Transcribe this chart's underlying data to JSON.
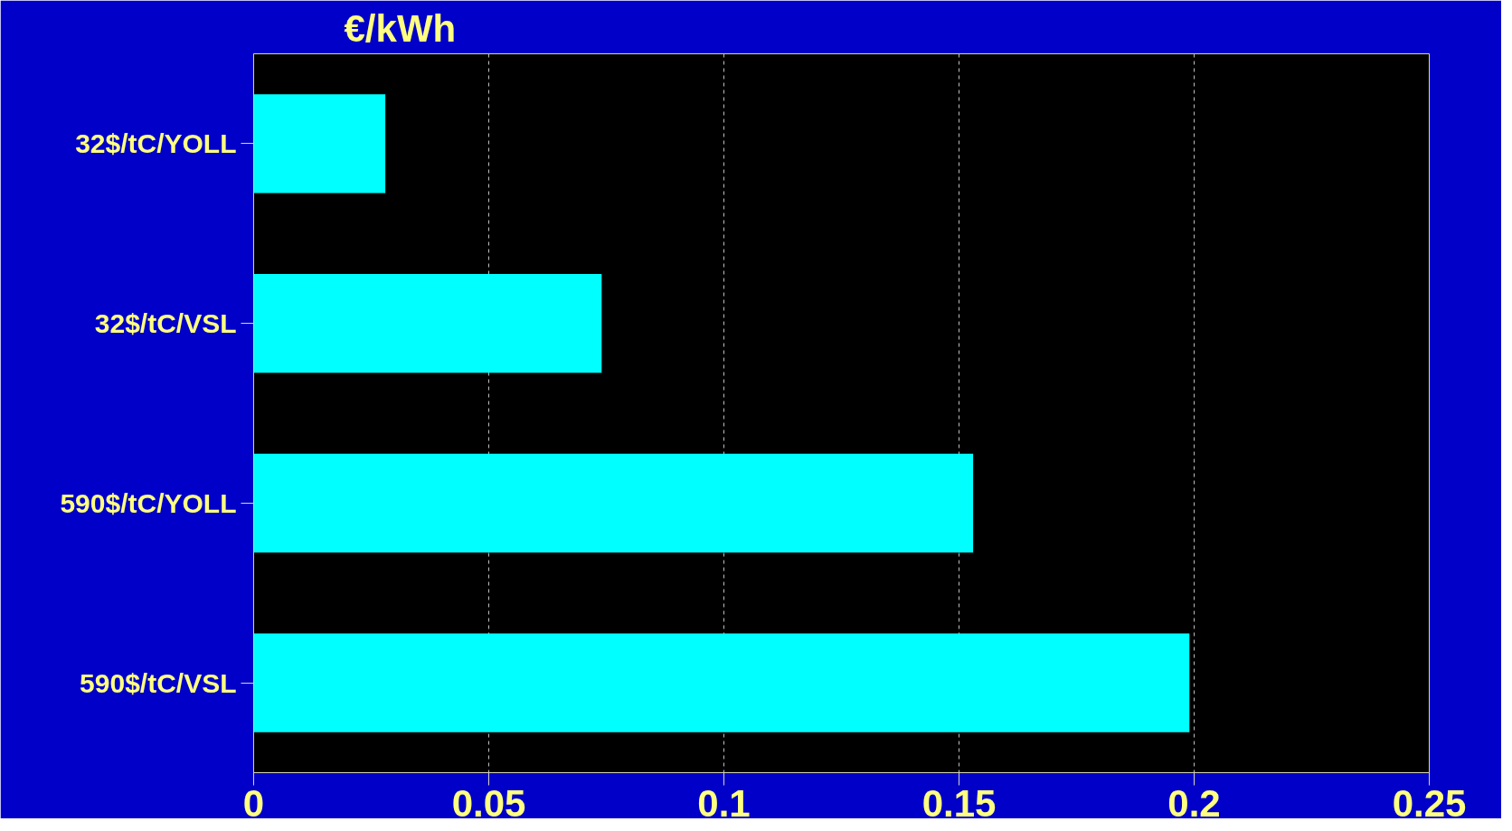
{
  "chart_data": {
    "type": "bar",
    "orientation": "horizontal",
    "title": "€/kWh",
    "categories": [
      "32$/tC/YOLL",
      "32$/tC/VSL",
      "590$/tC/YOLL",
      "590$/tC/VSL"
    ],
    "values": [
      0.028,
      0.074,
      0.153,
      0.199
    ],
    "color": "#00ffff",
    "xlim": [
      0,
      0.25
    ],
    "xticks": [
      0,
      0.05,
      0.1,
      0.15,
      0.2,
      0.25
    ],
    "grid": "x"
  }
}
